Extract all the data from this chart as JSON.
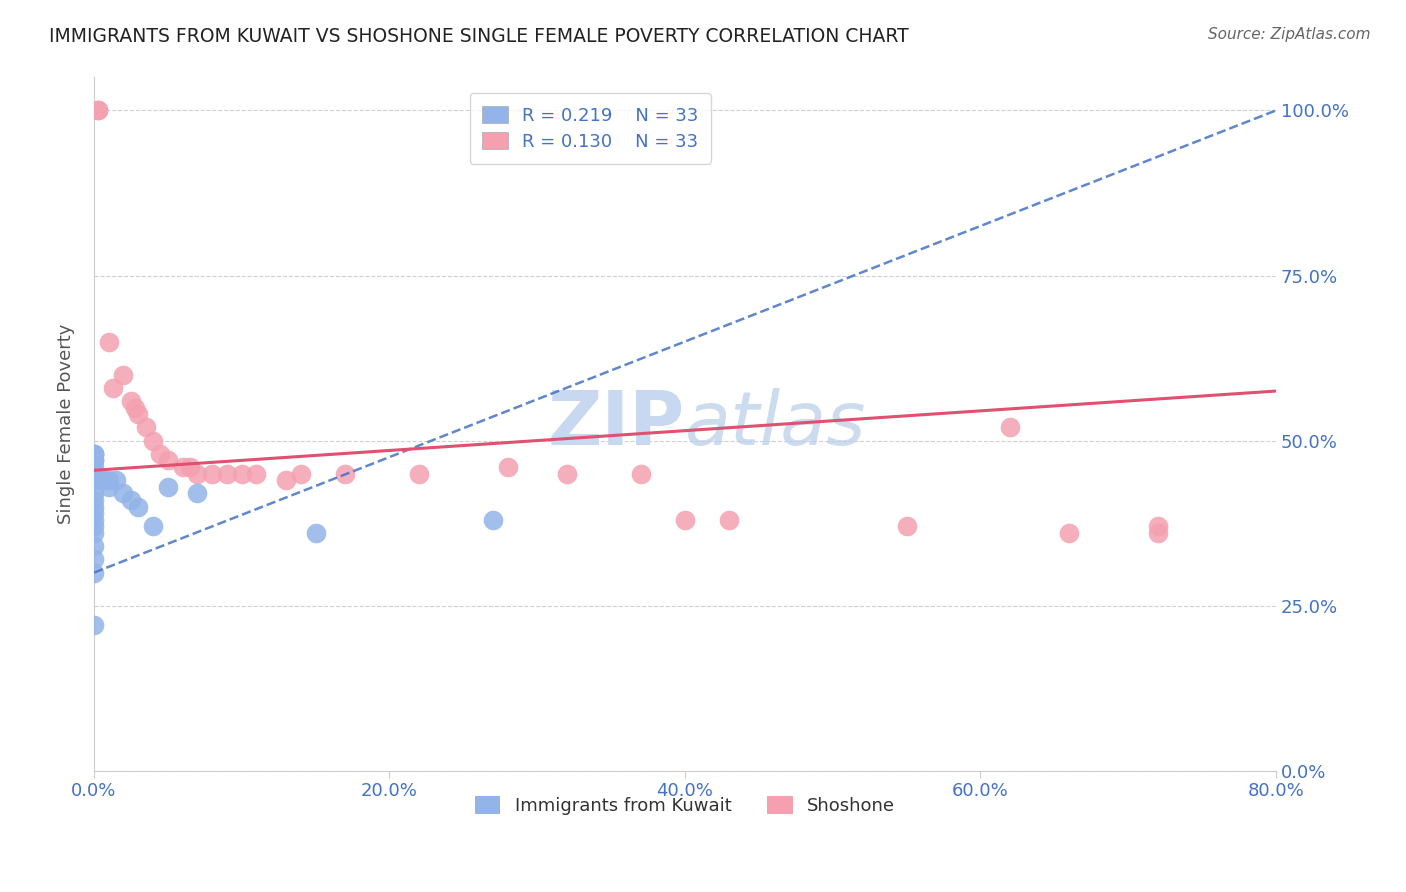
{
  "title": "IMMIGRANTS FROM KUWAIT VS SHOSHONE SINGLE FEMALE POVERTY CORRELATION CHART",
  "source": "Source: ZipAtlas.com",
  "ylabel": "Single Female Poverty",
  "xlim": [
    0.0,
    0.8
  ],
  "ylim": [
    0.0,
    1.05
  ],
  "ytick_labels": [
    "0.0%",
    "25.0%",
    "50.0%",
    "75.0%",
    "100.0%"
  ],
  "ytick_values": [
    0.0,
    0.25,
    0.5,
    0.75,
    1.0
  ],
  "xtick_labels": [
    "0.0%",
    "20.0%",
    "40.0%",
    "60.0%",
    "80.0%"
  ],
  "xtick_values": [
    0.0,
    0.2,
    0.4,
    0.6,
    0.8
  ],
  "kuwait_R": 0.219,
  "kuwait_N": 33,
  "shoshone_R": 0.13,
  "shoshone_N": 33,
  "kuwait_color": "#92b4e8",
  "shoshone_color": "#f4a0b0",
  "kuwait_line_color": "#4472c4",
  "shoshone_line_color": "#e05070",
  "background_color": "#ffffff",
  "watermark_color": "#c8d8f0",
  "kuwait_x": [
    0.0,
    0.0,
    0.0,
    0.0,
    0.0,
    0.0,
    0.0,
    0.0,
    0.0,
    0.0,
    0.0,
    0.0,
    0.0,
    0.0,
    0.0,
    0.0,
    0.0,
    0.0,
    0.0,
    0.0,
    0.005,
    0.007,
    0.01,
    0.01,
    0.015,
    0.02,
    0.025,
    0.03,
    0.04,
    0.05,
    0.07,
    0.15,
    0.27
  ],
  "kuwait_y": [
    0.44,
    0.45,
    0.45,
    0.46,
    0.47,
    0.47,
    0.48,
    0.48,
    0.48,
    0.42,
    0.41,
    0.4,
    0.39,
    0.38,
    0.37,
    0.36,
    0.34,
    0.32,
    0.3,
    0.22,
    0.44,
    0.44,
    0.44,
    0.43,
    0.44,
    0.42,
    0.41,
    0.4,
    0.37,
    0.43,
    0.42,
    0.36,
    0.38
  ],
  "shoshone_x": [
    0.003,
    0.003,
    0.01,
    0.013,
    0.02,
    0.025,
    0.028,
    0.03,
    0.035,
    0.04,
    0.045,
    0.05,
    0.06,
    0.065,
    0.07,
    0.08,
    0.09,
    0.1,
    0.11,
    0.13,
    0.14,
    0.17,
    0.22,
    0.28,
    0.32,
    0.37,
    0.4,
    0.43,
    0.55,
    0.62,
    0.66,
    0.72,
    0.72
  ],
  "shoshone_y": [
    1.0,
    1.0,
    0.65,
    0.58,
    0.6,
    0.56,
    0.55,
    0.54,
    0.52,
    0.5,
    0.48,
    0.47,
    0.46,
    0.46,
    0.45,
    0.45,
    0.45,
    0.45,
    0.45,
    0.44,
    0.45,
    0.45,
    0.45,
    0.46,
    0.45,
    0.45,
    0.38,
    0.38,
    0.37,
    0.52,
    0.36,
    0.37,
    0.36
  ],
  "kuwait_line_x0": 0.0,
  "kuwait_line_y0": 0.3,
  "kuwait_line_x1": 0.8,
  "kuwait_line_y1": 1.0,
  "shoshone_line_x0": 0.0,
  "shoshone_line_y0": 0.455,
  "shoshone_line_x1": 0.8,
  "shoshone_line_y1": 0.575
}
